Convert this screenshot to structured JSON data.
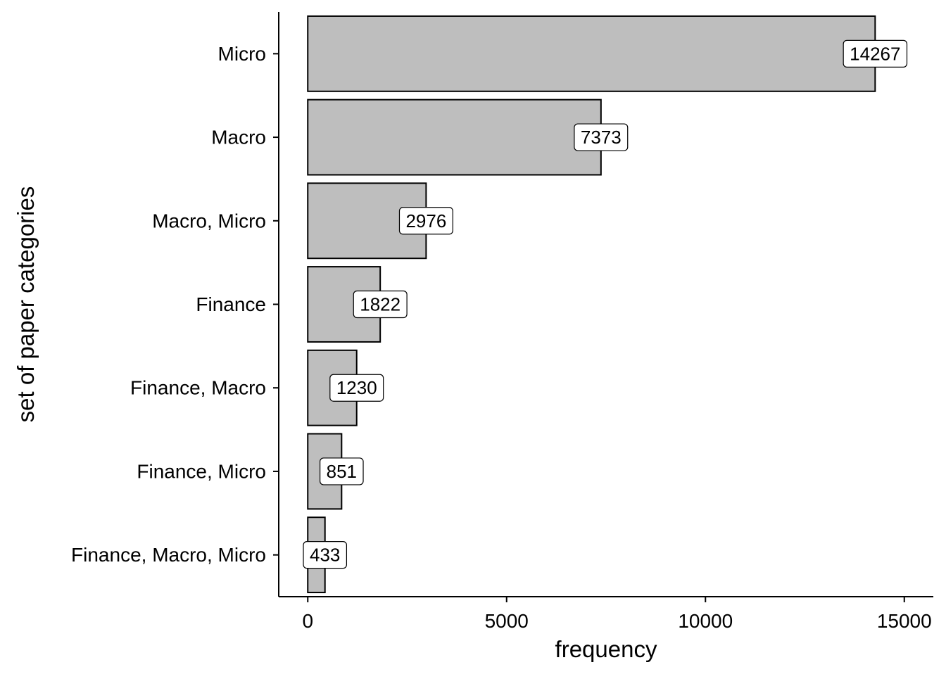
{
  "chart_data": {
    "type": "bar",
    "orientation": "horizontal",
    "categories": [
      "Micro",
      "Macro",
      "Macro, Micro",
      "Finance",
      "Finance, Macro",
      "Finance, Micro",
      "Finance, Macro, Micro"
    ],
    "values": [
      14267,
      7373,
      2976,
      1822,
      1230,
      851,
      433
    ],
    "data_labels": [
      "14267",
      "7373",
      "2976",
      "1822",
      "1230",
      "851",
      "433"
    ],
    "xlabel": "frequency",
    "ylabel": "set of paper categories",
    "xlim": [
      -730,
      15730
    ],
    "xticks": [
      0,
      5000,
      10000,
      15000
    ],
    "xtick_labels": [
      "0",
      "5000",
      "10000",
      "15000"
    ],
    "grid": false,
    "legend": "none",
    "bar_fill": "#bebebe",
    "bar_stroke": "#000000",
    "label_box_fill": "#ffffff"
  }
}
